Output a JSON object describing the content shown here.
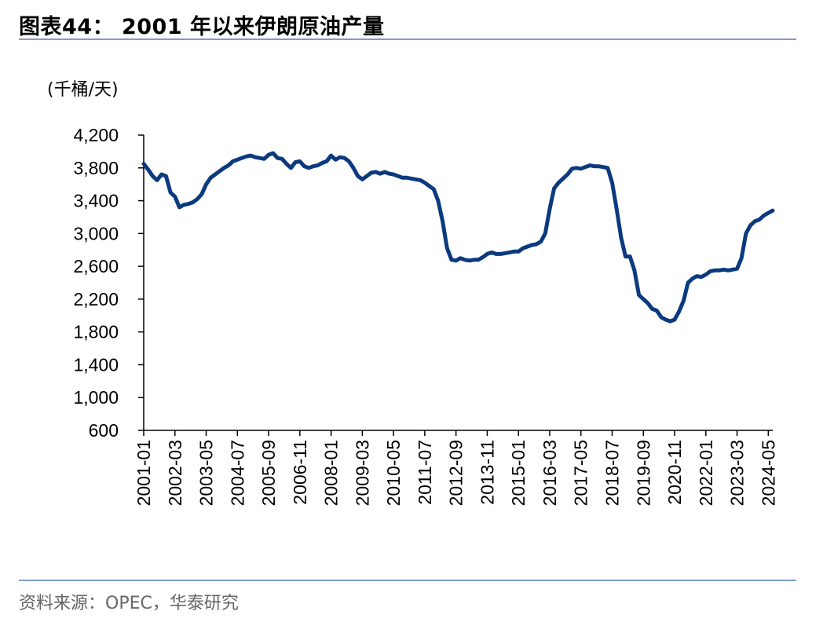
{
  "page": {
    "title": "图表44：  2001 年以来伊朗原油产量",
    "unit_label": "(千桶/天)",
    "source": "资料来源：OPEC，华泰研究",
    "colors": {
      "line": "#0b3a7e",
      "rule": "#7f9cc6",
      "axis": "#000000",
      "source_text": "#666666"
    }
  },
  "chart_data": {
    "type": "line",
    "title": "",
    "xlabel": "",
    "ylabel": "(千桶/天)",
    "ylim": [
      600,
      4200
    ],
    "y_ticks": [
      600,
      1000,
      1400,
      1800,
      2200,
      2600,
      3000,
      3400,
      3800,
      4200
    ],
    "y_tick_labels": [
      "600",
      "1,000",
      "1,400",
      "1,800",
      "2,200",
      "2,600",
      "3,000",
      "3,400",
      "3,800",
      "4,200"
    ],
    "x_start": "2001-01",
    "x_end": "2024-07",
    "x_tick_labels": [
      "2001-01",
      "2002-03",
      "2003-05",
      "2004-07",
      "2005-09",
      "2006-11",
      "2008-01",
      "2009-03",
      "2010-05",
      "2011-07",
      "2012-09",
      "2013-11",
      "2015-01",
      "2016-03",
      "2017-05",
      "2018-07",
      "2019-09",
      "2020-11",
      "2022-01",
      "2023-03",
      "2024-05"
    ],
    "grid": false,
    "legend": "none",
    "series": [
      {
        "color": "#0b3a7e",
        "points": [
          [
            "2001-01",
            3850
          ],
          [
            "2001-03",
            3780
          ],
          [
            "2001-05",
            3700
          ],
          [
            "2001-07",
            3650
          ],
          [
            "2001-09",
            3720
          ],
          [
            "2001-11",
            3700
          ],
          [
            "2002-01",
            3500
          ],
          [
            "2002-03",
            3450
          ],
          [
            "2002-05",
            3320
          ],
          [
            "2002-07",
            3350
          ],
          [
            "2002-09",
            3360
          ],
          [
            "2002-11",
            3380
          ],
          [
            "2003-01",
            3420
          ],
          [
            "2003-03",
            3480
          ],
          [
            "2003-05",
            3600
          ],
          [
            "2003-07",
            3680
          ],
          [
            "2003-09",
            3720
          ],
          [
            "2003-11",
            3760
          ],
          [
            "2004-01",
            3800
          ],
          [
            "2004-03",
            3830
          ],
          [
            "2004-05",
            3880
          ],
          [
            "2004-07",
            3900
          ],
          [
            "2004-09",
            3920
          ],
          [
            "2004-11",
            3940
          ],
          [
            "2005-01",
            3950
          ],
          [
            "2005-03",
            3930
          ],
          [
            "2005-05",
            3920
          ],
          [
            "2005-07",
            3910
          ],
          [
            "2005-09",
            3960
          ],
          [
            "2005-11",
            3980
          ],
          [
            "2006-01",
            3920
          ],
          [
            "2006-03",
            3910
          ],
          [
            "2006-05",
            3850
          ],
          [
            "2006-07",
            3800
          ],
          [
            "2006-09",
            3870
          ],
          [
            "2006-11",
            3880
          ],
          [
            "2007-01",
            3820
          ],
          [
            "2007-03",
            3800
          ],
          [
            "2007-05",
            3820
          ],
          [
            "2007-07",
            3830
          ],
          [
            "2007-09",
            3860
          ],
          [
            "2007-11",
            3880
          ],
          [
            "2008-01",
            3950
          ],
          [
            "2008-03",
            3900
          ],
          [
            "2008-05",
            3930
          ],
          [
            "2008-07",
            3920
          ],
          [
            "2008-09",
            3880
          ],
          [
            "2008-11",
            3800
          ],
          [
            "2009-01",
            3700
          ],
          [
            "2009-03",
            3660
          ],
          [
            "2009-05",
            3700
          ],
          [
            "2009-07",
            3740
          ],
          [
            "2009-09",
            3750
          ],
          [
            "2009-11",
            3730
          ],
          [
            "2010-01",
            3750
          ],
          [
            "2010-03",
            3730
          ],
          [
            "2010-05",
            3720
          ],
          [
            "2010-07",
            3700
          ],
          [
            "2010-09",
            3680
          ],
          [
            "2010-11",
            3680
          ],
          [
            "2011-01",
            3670
          ],
          [
            "2011-03",
            3660
          ],
          [
            "2011-05",
            3650
          ],
          [
            "2011-07",
            3620
          ],
          [
            "2011-09",
            3580
          ],
          [
            "2011-11",
            3540
          ],
          [
            "2012-01",
            3400
          ],
          [
            "2012-03",
            3150
          ],
          [
            "2012-05",
            2820
          ],
          [
            "2012-07",
            2680
          ],
          [
            "2012-09",
            2670
          ],
          [
            "2012-11",
            2700
          ],
          [
            "2013-01",
            2680
          ],
          [
            "2013-03",
            2670
          ],
          [
            "2013-05",
            2680
          ],
          [
            "2013-07",
            2680
          ],
          [
            "2013-09",
            2710
          ],
          [
            "2013-11",
            2750
          ],
          [
            "2014-01",
            2770
          ],
          [
            "2014-03",
            2750
          ],
          [
            "2014-05",
            2750
          ],
          [
            "2014-07",
            2760
          ],
          [
            "2014-09",
            2770
          ],
          [
            "2014-11",
            2780
          ],
          [
            "2015-01",
            2780
          ],
          [
            "2015-03",
            2820
          ],
          [
            "2015-05",
            2840
          ],
          [
            "2015-07",
            2860
          ],
          [
            "2015-09",
            2870
          ],
          [
            "2015-11",
            2900
          ],
          [
            "2016-01",
            3000
          ],
          [
            "2016-03",
            3300
          ],
          [
            "2016-05",
            3550
          ],
          [
            "2016-07",
            3620
          ],
          [
            "2016-09",
            3670
          ],
          [
            "2016-11",
            3720
          ],
          [
            "2017-01",
            3790
          ],
          [
            "2017-03",
            3800
          ],
          [
            "2017-05",
            3790
          ],
          [
            "2017-07",
            3810
          ],
          [
            "2017-09",
            3830
          ],
          [
            "2017-11",
            3820
          ],
          [
            "2018-01",
            3820
          ],
          [
            "2018-03",
            3810
          ],
          [
            "2018-05",
            3800
          ],
          [
            "2018-07",
            3620
          ],
          [
            "2018-09",
            3300
          ],
          [
            "2018-11",
            2950
          ],
          [
            "2019-01",
            2720
          ],
          [
            "2019-03",
            2720
          ],
          [
            "2019-05",
            2550
          ],
          [
            "2019-07",
            2250
          ],
          [
            "2019-09",
            2200
          ],
          [
            "2019-11",
            2150
          ],
          [
            "2020-01",
            2080
          ],
          [
            "2020-03",
            2060
          ],
          [
            "2020-05",
            1980
          ],
          [
            "2020-07",
            1950
          ],
          [
            "2020-09",
            1930
          ],
          [
            "2020-11",
            1950
          ],
          [
            "2021-01",
            2050
          ],
          [
            "2021-03",
            2180
          ],
          [
            "2021-05",
            2400
          ],
          [
            "2021-07",
            2450
          ],
          [
            "2021-09",
            2480
          ],
          [
            "2021-11",
            2470
          ],
          [
            "2022-01",
            2500
          ],
          [
            "2022-03",
            2540
          ],
          [
            "2022-05",
            2550
          ],
          [
            "2022-07",
            2550
          ],
          [
            "2022-09",
            2560
          ],
          [
            "2022-11",
            2550
          ],
          [
            "2023-01",
            2560
          ],
          [
            "2023-03",
            2570
          ],
          [
            "2023-05",
            2700
          ],
          [
            "2023-07",
            3000
          ],
          [
            "2023-09",
            3100
          ],
          [
            "2023-11",
            3150
          ],
          [
            "2024-01",
            3170
          ],
          [
            "2024-03",
            3220
          ],
          [
            "2024-05",
            3250
          ],
          [
            "2024-07",
            3280
          ]
        ]
      }
    ]
  }
}
